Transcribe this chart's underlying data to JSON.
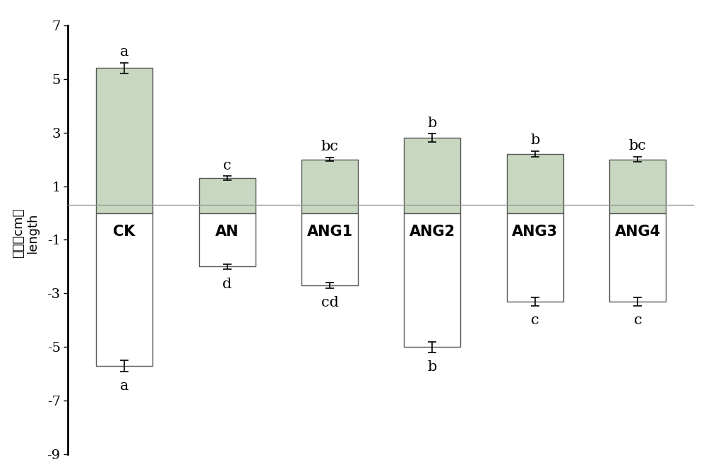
{
  "categories": [
    "CK",
    "AN",
    "ANG1",
    "ANG2",
    "ANG3",
    "ANG4"
  ],
  "upper_values": [
    5.4,
    1.3,
    2.0,
    2.8,
    2.2,
    2.0
  ],
  "upper_errors": [
    0.2,
    0.07,
    0.07,
    0.15,
    0.1,
    0.1
  ],
  "lower_values": [
    -5.7,
    -2.0,
    -2.7,
    -5.0,
    -3.3,
    -3.3
  ],
  "lower_errors": [
    0.2,
    0.1,
    0.1,
    0.2,
    0.15,
    0.15
  ],
  "upper_letters": [
    "a",
    "c",
    "bc",
    "b",
    "b",
    "bc"
  ],
  "lower_letters": [
    "a",
    "d",
    "cd",
    "b",
    "c",
    "c"
  ],
  "upper_bar_color": "#c8d8c0",
  "lower_bar_color": "#ffffff",
  "bar_edge_color": "#555555",
  "bar_width": 0.55,
  "ylabel_chinese": "长度（cm）",
  "ylabel_english": "length",
  "ylim": [
    -9,
    7.5
  ],
  "yticks": [
    -9,
    -7,
    -5,
    -3,
    -1,
    1,
    3,
    5,
    7
  ],
  "hline_y": 0.3,
  "hline_color": "#999999",
  "background_color": "#ffffff",
  "letter_fontsize": 15,
  "label_fontsize": 13,
  "tick_fontsize": 14,
  "cat_fontsize": 15
}
